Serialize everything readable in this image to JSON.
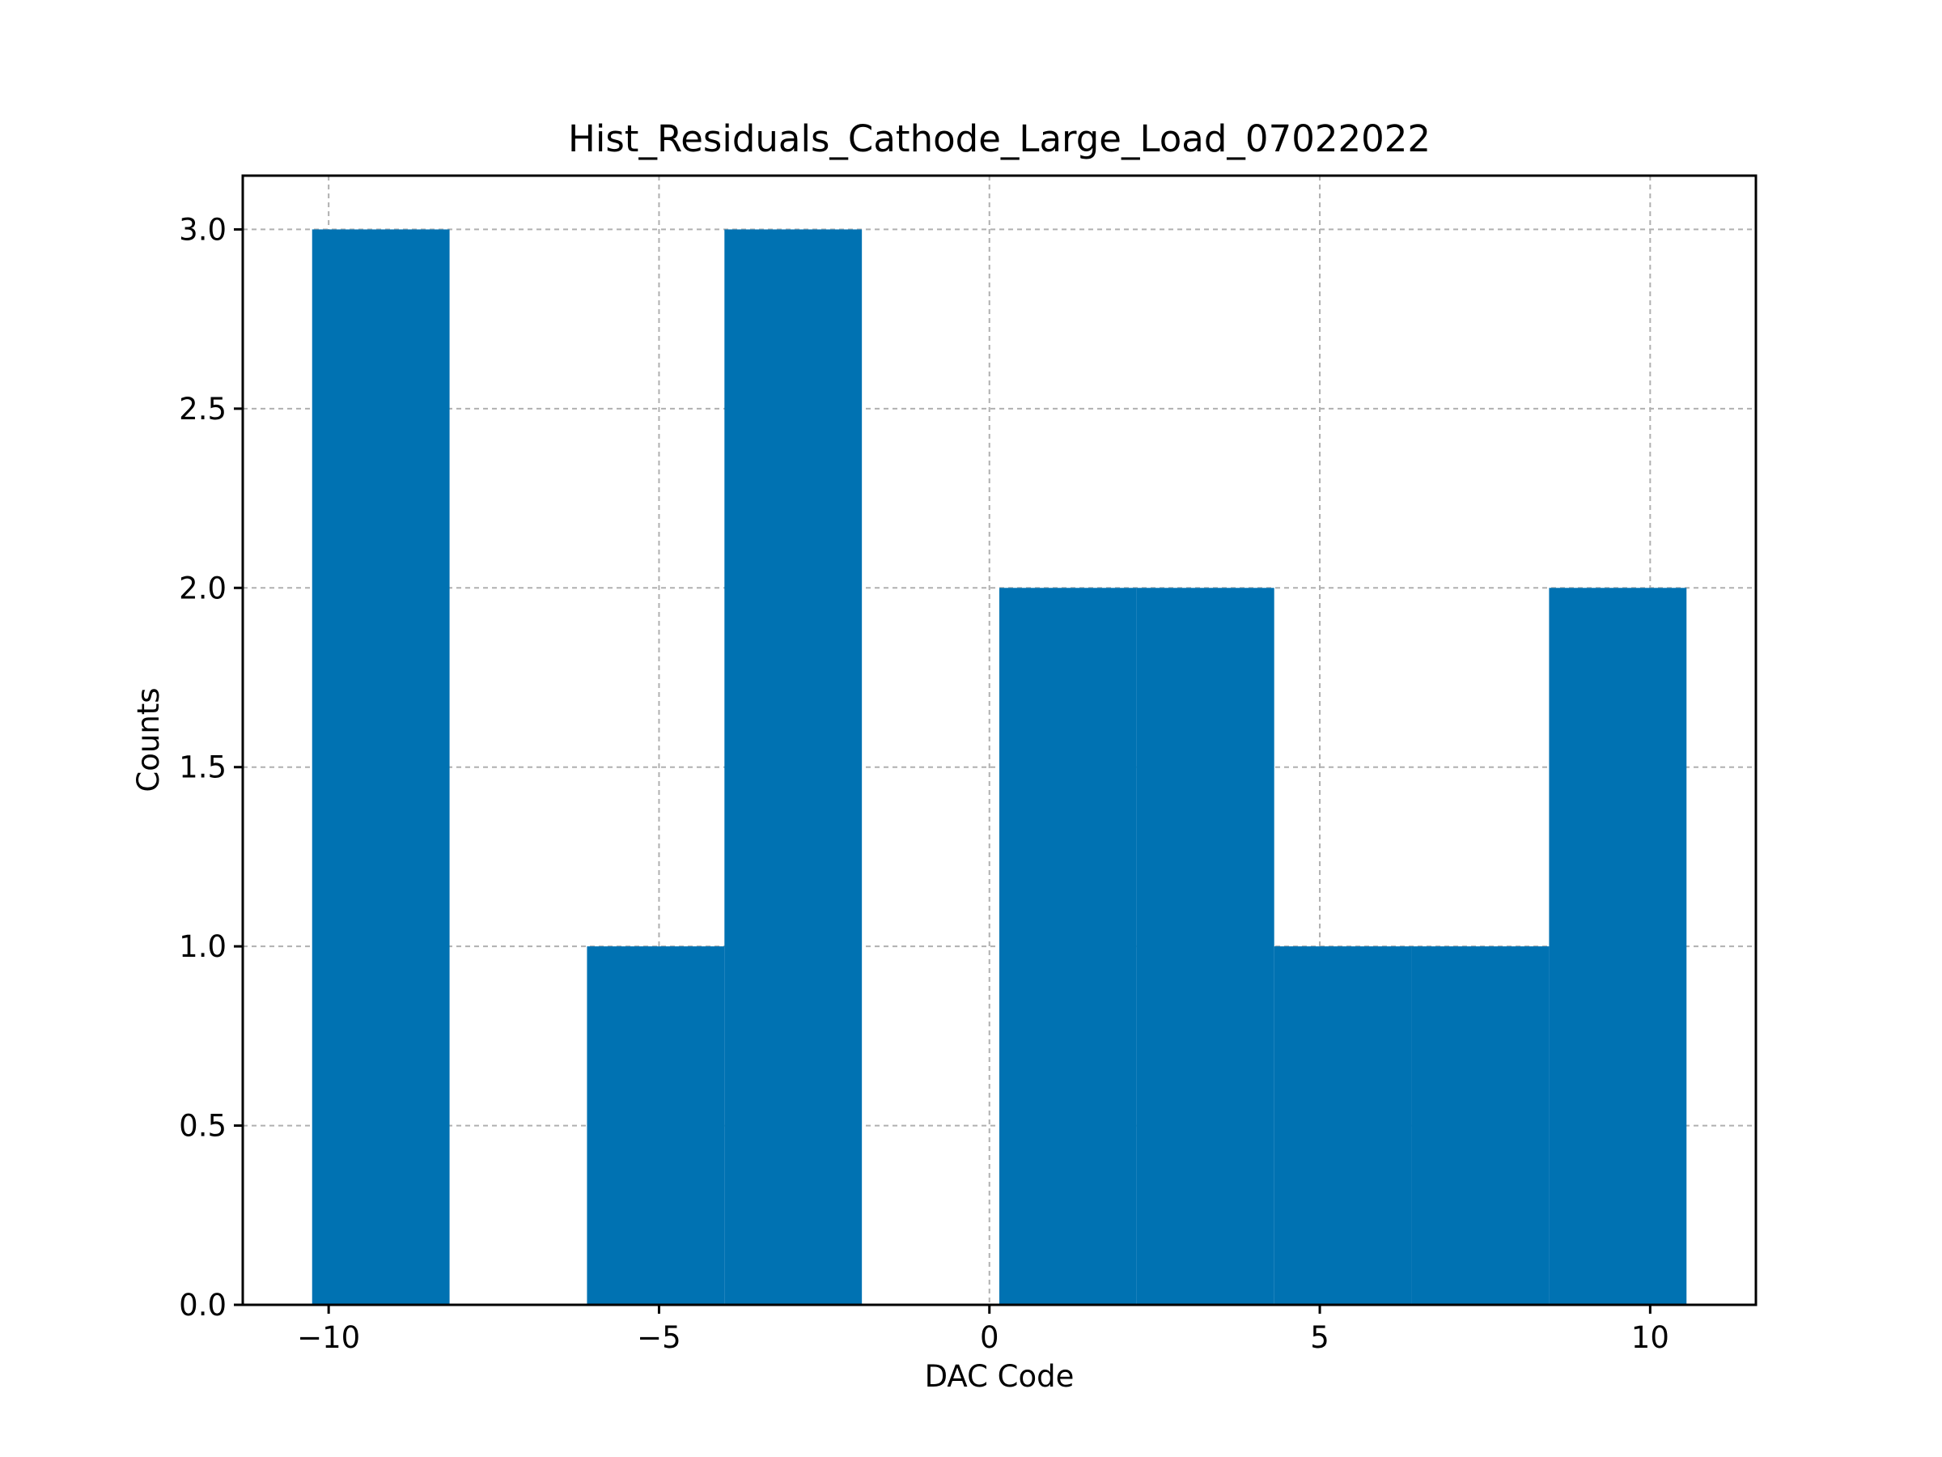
{
  "chart_data": {
    "type": "bar",
    "title": "Hist_Residuals_Cathode_Large_Load_07022022",
    "xlabel": "DAC Code",
    "ylabel": "Counts",
    "xlim": [
      -11.3,
      11.6
    ],
    "ylim": [
      0,
      3.15
    ],
    "xticks": [
      -10,
      -5,
      0,
      5,
      10
    ],
    "xtick_labels": [
      "−10",
      "−5",
      "0",
      "5",
      "10"
    ],
    "yticks": [
      0.0,
      0.5,
      1.0,
      1.5,
      2.0,
      2.5,
      3.0
    ],
    "ytick_labels": [
      "0.0",
      "0.5",
      "1.0",
      "1.5",
      "2.0",
      "2.5",
      "3.0"
    ],
    "grid": true,
    "bar_color": "#0072b2",
    "bin_edges": [
      -10.25,
      -8.17,
      -6.09,
      -4.01,
      -1.93,
      0.15,
      2.23,
      4.31,
      6.39,
      8.47,
      10.55
    ],
    "values": [
      3,
      0,
      1,
      3,
      0,
      2,
      2,
      1,
      1,
      2
    ]
  }
}
